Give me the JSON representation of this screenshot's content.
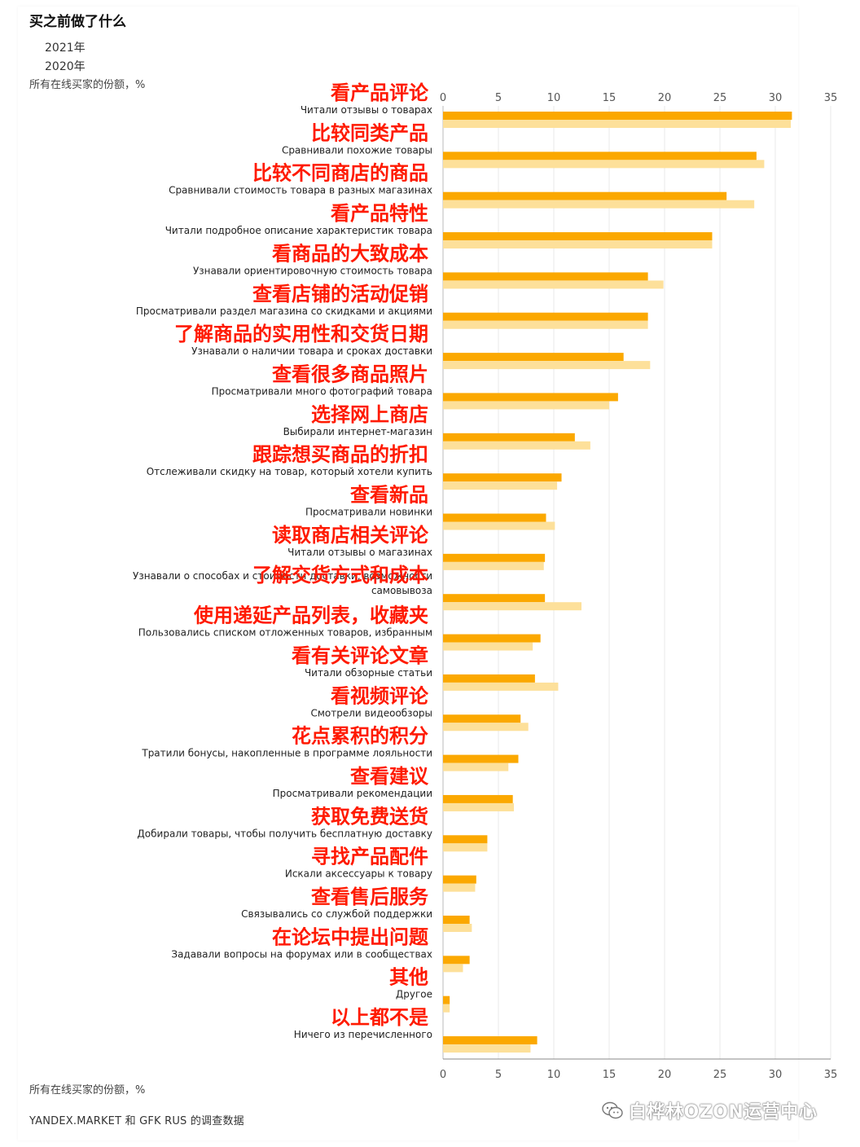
{
  "title": "买之前做了什么",
  "legend": [
    "2021年",
    "2020年"
  ],
  "subtitle_top": "所有在线买家的份额，%",
  "subtitle_bottom": "所有在线买家的份额，%",
  "footer": "YANDEX.MARKET 和 GFK RUS 的调查数据",
  "watermark": "白桦林OZON运营中心",
  "colors": {
    "series_2021": "#fba800",
    "series_2020": "#fde09a",
    "annotation": "#ff1a00",
    "grid": "#e8e8e8"
  },
  "chart_data": {
    "type": "bar",
    "orientation": "horizontal",
    "xlim": [
      0,
      35
    ],
    "ticks": [
      0,
      5,
      10,
      15,
      20,
      25,
      30,
      35
    ],
    "grid": true,
    "categories": [
      "Читали отзывы о товарах",
      "Сравнивали похожие товары",
      "Сравнивали стоимость товара в разных магазинах",
      "Читали подробное описание характеристик товара",
      "Узнавали ориентировочную стоимость товара",
      "Просматривали раздел магазина со скидками и акциями",
      "Узнавали о наличии товара и сроках доставки",
      "Просматривали много фотографий товара",
      "Выбирали интернет-магазин",
      "Отслеживали скидку на товар, который хотели купить",
      "Просматривали новинки",
      "Читали отзывы о магазинах",
      "Узнавали о способах и стоимости доставки, возможности самовывоза",
      "Пользовались списком отложенных товаров, избранным",
      "Читали обзорные статьи",
      "Смотрели видеообзоры",
      "Тратили бонусы, накопленные в программе лояльности",
      "Просматривали рекомендации",
      "Добирали товары, чтобы получить бесплатную доставку",
      "Искали аксессуары к товару",
      "Связывались со службой поддержки",
      "Задавали вопросы на форумах или в сообществах",
      "Другое",
      "Ничего из перечисленного"
    ],
    "annotations": [
      "看产品评论",
      "比较同类产品",
      "比较不同商店的商品",
      "看产品特性",
      "看商品的大致成本",
      "查看店铺的活动促销",
      "了解商品的实用性和交货日期",
      "查看很多商品照片",
      "选择网上商店",
      "跟踪想买商品的折扣",
      "查看新品",
      "读取商店相关评论",
      "了解交货方式和成本",
      "使用递延产品列表，收藏夹",
      "看有关评论文章",
      "看视频评论",
      "花点累积的积分",
      "查看建议",
      "获取免费送货",
      "寻找产品配件",
      "查看售后服务",
      "在论坛中提出问题",
      "其他",
      "以上都不是"
    ],
    "series": [
      {
        "name": "2021年",
        "values": [
          31.5,
          28.3,
          25.6,
          24.3,
          18.5,
          18.5,
          16.3,
          15.8,
          11.9,
          10.7,
          9.3,
          9.2,
          9.2,
          8.8,
          8.3,
          7.0,
          6.8,
          6.3,
          4.0,
          3.0,
          2.4,
          2.4,
          0.6,
          8.5
        ]
      },
      {
        "name": "2020年",
        "values": [
          31.4,
          29.0,
          28.1,
          24.3,
          19.9,
          18.5,
          18.7,
          15.0,
          13.3,
          10.3,
          10.1,
          9.1,
          12.5,
          8.1,
          10.4,
          7.7,
          5.9,
          6.4,
          4.0,
          2.9,
          2.6,
          1.8,
          0.6,
          7.9
        ]
      }
    ]
  }
}
